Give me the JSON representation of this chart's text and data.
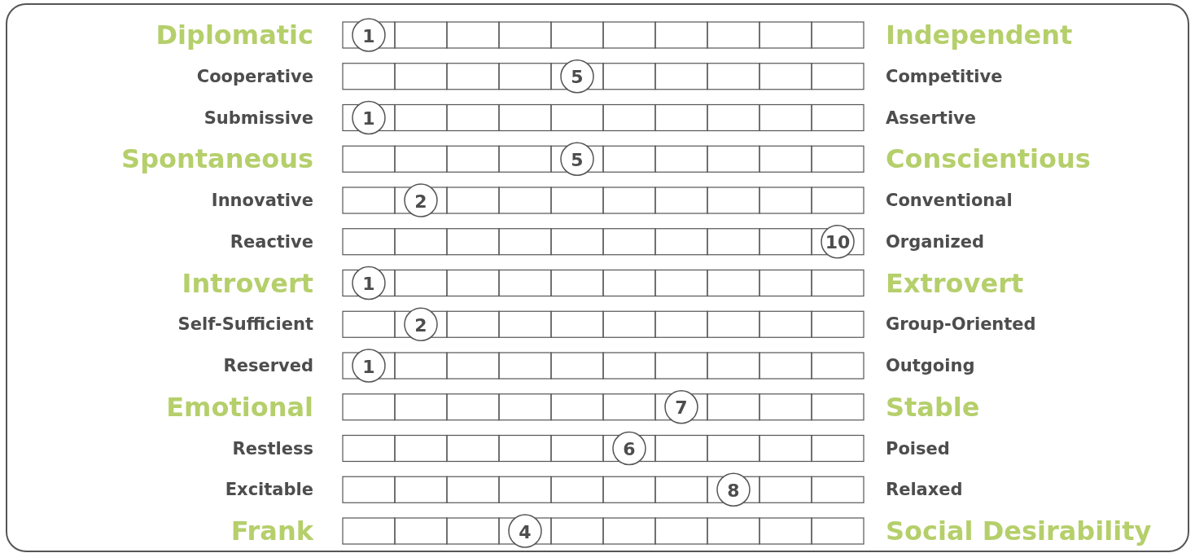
{
  "chart_data": {
    "type": "other",
    "categories": [
      "Diplomatic",
      "Cooperative",
      "Submissive",
      "Spontaneous",
      "Innovative",
      "Reactive",
      "Introvert",
      "Self-Sufficient",
      "Reserved",
      "Emotional",
      "Restless",
      "Excitable",
      "Frank"
    ],
    "y2_categories": [
      "Independent",
      "Competitive",
      "Assertive",
      "Conscientious",
      "Conventional",
      "Organized",
      "Extrovert",
      "Group-Oriented",
      "Outgoing",
      "Stable",
      "Poised",
      "Relaxed",
      "Social Desirability"
    ],
    "values": [
      1,
      5,
      1,
      5,
      2,
      10,
      1,
      2,
      1,
      7,
      6,
      8,
      4
    ],
    "data_labels": true
  }
}
